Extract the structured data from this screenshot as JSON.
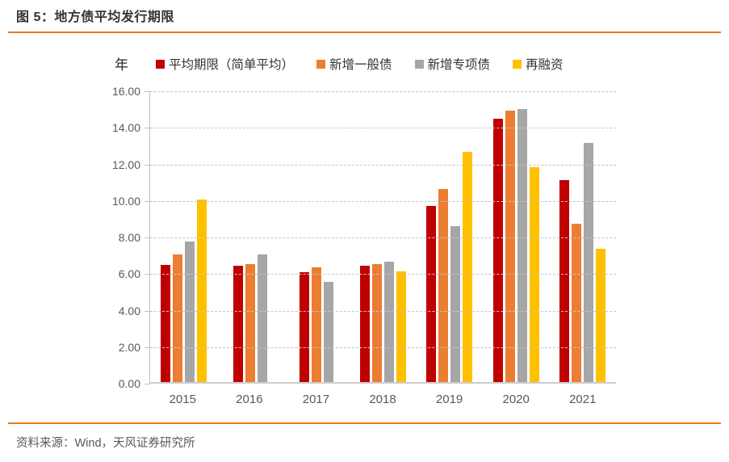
{
  "header": {
    "title": "图 5：地方债平均发行期限"
  },
  "footer": {
    "source": "资料来源：Wind，天风证券研究所"
  },
  "colors": {
    "rule_orange": "#E87E1E",
    "grid": "#C6C6C6",
    "axis_line": "#BFBFBF",
    "axis_text": "#595959",
    "title_text": "#333333"
  },
  "chart_data": {
    "type": "bar",
    "title": "地方债平均发行期限",
    "unit_label": "年",
    "categories": [
      "2015",
      "2016",
      "2017",
      "2018",
      "2019",
      "2020",
      "2021"
    ],
    "series": [
      {
        "name": "平均期限（简单平均）",
        "color": "#C00000",
        "values": [
          6.4,
          6.35,
          6.0,
          6.35,
          9.65,
          14.4,
          11.05
        ]
      },
      {
        "name": "新增一般债",
        "color": "#ED7D31",
        "values": [
          7.0,
          6.45,
          6.3,
          6.45,
          10.55,
          14.85,
          8.65
        ]
      },
      {
        "name": "新增专项债",
        "color": "#A6A6A6",
        "values": [
          7.7,
          7.0,
          5.5,
          6.6,
          8.55,
          14.95,
          13.1
        ]
      },
      {
        "name": "再融资",
        "color": "#FFC000",
        "values": [
          10.0,
          null,
          null,
          6.05,
          12.6,
          11.75,
          7.3
        ]
      }
    ],
    "ylim": [
      0,
      16
    ],
    "ytick_step": 2,
    "ytick_labels": [
      "16.00",
      "14.00",
      "12.00",
      "10.00",
      "8.00",
      "6.00",
      "4.00",
      "2.00",
      "0.00"
    ],
    "grid": "horizontal-dashed",
    "legend_position": "top"
  }
}
